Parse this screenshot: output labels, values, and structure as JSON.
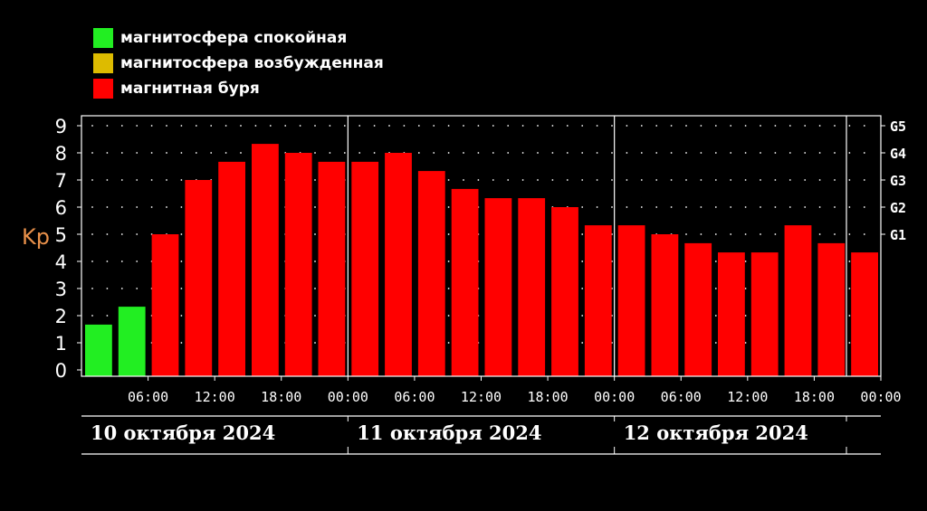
{
  "legend": [
    {
      "label": "магнитосфера спокойная",
      "color": "#22ee22"
    },
    {
      "label": "магнитосфера возбужденная",
      "color": "#ddbb00"
    },
    {
      "label": "магнитная буря",
      "color": "#ff0000"
    }
  ],
  "colors": {
    "quiet": "#22ee22",
    "storm": "#ff0000",
    "background": "#000000",
    "ylabel": "#e8904a"
  },
  "chart_data": {
    "type": "bar",
    "ylabel": "Kp",
    "ylim": [
      0,
      9
    ],
    "yticks": [
      0,
      1,
      2,
      3,
      4,
      5,
      6,
      7,
      8,
      9
    ],
    "right_axis_labels": [
      {
        "label": "G5",
        "kp": 9
      },
      {
        "label": "G4",
        "kp": 8
      },
      {
        "label": "G3",
        "kp": 7
      },
      {
        "label": "G2",
        "kp": 6
      },
      {
        "label": "G1",
        "kp": 5
      }
    ],
    "xticks": [
      "06:00",
      "12:00",
      "18:00",
      "00:00",
      "06:00",
      "12:00",
      "18:00",
      "00:00",
      "06:00",
      "12:00",
      "18:00",
      "00:00"
    ],
    "days": [
      "10 октября 2024",
      "11 октября 2024",
      "12 октября 2024"
    ],
    "values": [
      1.67,
      2.33,
      5.0,
      7.0,
      7.67,
      8.33,
      8.0,
      7.67,
      7.67,
      8.0,
      7.33,
      6.67,
      6.33,
      6.33,
      6.0,
      5.33,
      5.33,
      5.0,
      4.67,
      4.33,
      4.33,
      5.33,
      4.67,
      4.33
    ],
    "status": [
      "quiet",
      "quiet",
      "storm",
      "storm",
      "storm",
      "storm",
      "storm",
      "storm",
      "storm",
      "storm",
      "storm",
      "storm",
      "storm",
      "storm",
      "storm",
      "storm",
      "storm",
      "storm",
      "storm",
      "storm",
      "storm",
      "storm",
      "storm",
      "storm"
    ],
    "grid": "dotted"
  }
}
